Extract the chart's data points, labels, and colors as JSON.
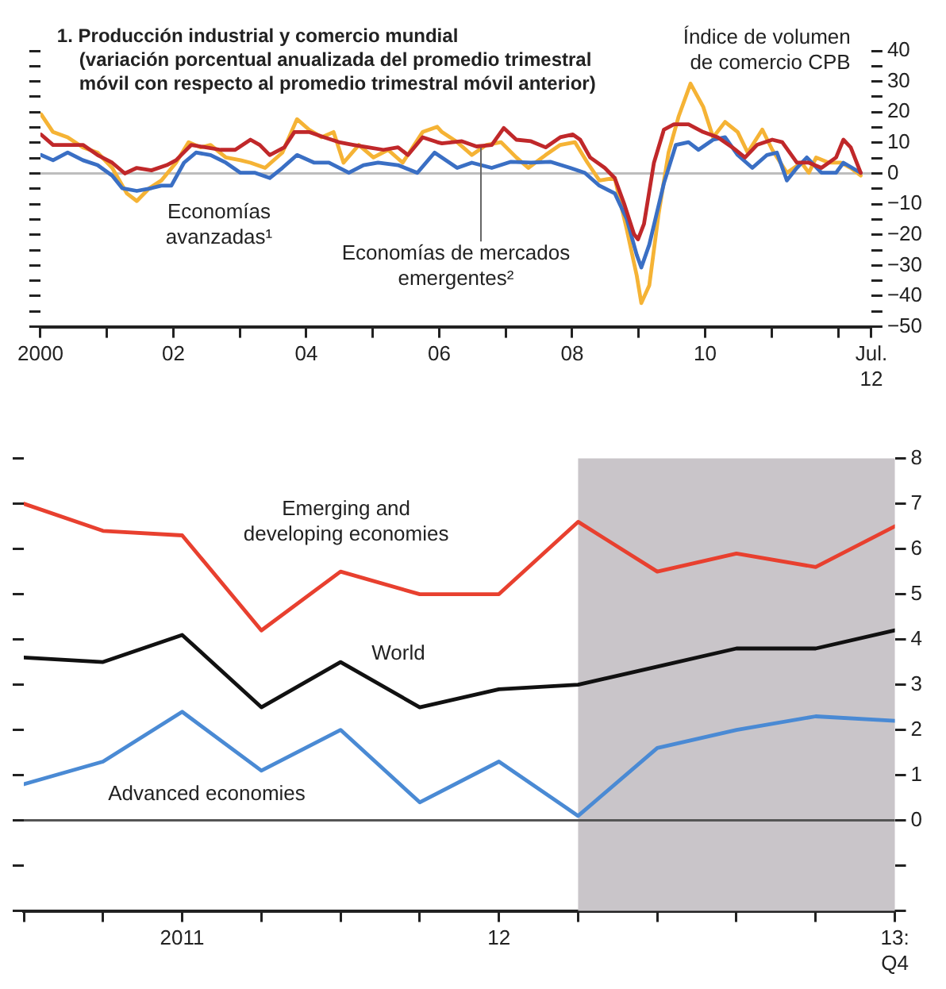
{
  "chart_data": [
    {
      "type": "line",
      "title": "1. Producción industrial y comercio mundial\n(variación porcentual anualizada del promedio trimestral\nmóvil con respecto al promedio trimestral móvil anterior)",
      "series": [
        {
          "name": "Economías de mercados\nemergentes²",
          "color": "#c0282a",
          "x": [
            2000.01,
            2000.19,
            2000.41,
            2000.64,
            2000.86,
            2001.08,
            2001.27,
            2001.45,
            2001.67,
            2001.9,
            2002.04,
            2002.27,
            2002.49,
            2002.71,
            2002.93,
            2003.16,
            2003.3,
            2003.45,
            2003.67,
            2003.82,
            2004.04,
            2004.27,
            2004.49,
            2004.71,
            2004.93,
            2005.16,
            2005.38,
            2005.53,
            2005.75,
            2005.97,
            2006.04,
            2006.34,
            2006.56,
            2006.79,
            2006.97,
            2007.16,
            2007.38,
            2007.6,
            2007.82,
            2008.01,
            2008.12,
            2008.27,
            2008.49,
            2008.64,
            2008.78,
            2008.93,
            2008.99,
            2009.08,
            2009.23,
            2009.38,
            2009.53,
            2009.75,
            2009.97,
            2010.19,
            2010.41,
            2010.6,
            2010.78,
            2011.01,
            2011.16,
            2011.38,
            2011.56,
            2011.75,
            2011.97,
            2012.08,
            2012.19,
            2012.34
          ],
          "values": [
            12.7,
            9.3,
            9.3,
            9.3,
            6,
            3.5,
            0,
            1.8,
            1,
            2.7,
            4.3,
            9.3,
            8.5,
            7.7,
            7.7,
            11,
            9.3,
            6,
            8.5,
            13.5,
            13.5,
            11.8,
            10.2,
            9.3,
            8.5,
            7.7,
            8.5,
            6,
            11.8,
            10.2,
            9.8,
            10.5,
            8.8,
            9.3,
            14.8,
            11,
            10.5,
            8.5,
            11.8,
            12.7,
            11,
            5.2,
            1.8,
            -1.5,
            -9.8,
            -19.8,
            -21.5,
            -16.5,
            3.5,
            14.3,
            16,
            16,
            13.5,
            11.8,
            8.5,
            5.2,
            9.3,
            11,
            10.2,
            3.5,
            3.5,
            1.8,
            5.2,
            11,
            8.5,
            0.2
          ]
        },
        {
          "name": "Economías\navanzadas¹",
          "color": "#3a6fc4",
          "x": [
            2000.01,
            2000.19,
            2000.41,
            2000.64,
            2000.86,
            2001.08,
            2001.23,
            2001.45,
            2001.67,
            2001.82,
            2001.97,
            2002.16,
            2002.34,
            2002.56,
            2002.79,
            2003.01,
            2003.23,
            2003.45,
            2003.64,
            2003.86,
            2004.12,
            2004.34,
            2004.64,
            2004.86,
            2005.08,
            2005.38,
            2005.67,
            2005.93,
            2006.04,
            2006.27,
            2006.49,
            2006.79,
            2007.08,
            2007.38,
            2007.67,
            2007.97,
            2008.19,
            2008.41,
            2008.64,
            2008.82,
            2008.97,
            2009.04,
            2009.16,
            2009.38,
            2009.56,
            2009.75,
            2009.9,
            2010.12,
            2010.3,
            2010.49,
            2010.71,
            2010.93,
            2011.08,
            2011.23,
            2011.38,
            2011.53,
            2011.75,
            2011.97,
            2012.08,
            2012.34
          ],
          "values": [
            6,
            4.3,
            6.8,
            4.3,
            2.7,
            -0.7,
            -4.8,
            -5.7,
            -4.8,
            -4,
            -4,
            3.5,
            6.8,
            6,
            3.5,
            0.2,
            0.2,
            -1.5,
            1.8,
            6,
            3.5,
            3.5,
            0.2,
            2.7,
            3.5,
            2.7,
            0.2,
            6.8,
            5.2,
            1.8,
            3.5,
            1.8,
            3.8,
            3.5,
            3.8,
            1.8,
            0.2,
            -4,
            -6.5,
            -14.8,
            -26.5,
            -30.7,
            -23.2,
            -3.2,
            9.3,
            10.2,
            7.7,
            11,
            11.8,
            6,
            1.8,
            6,
            6.8,
            -2.3,
            1.8,
            5.2,
            0.2,
            0.2,
            3.5,
            0.2
          ]
        },
        {
          "name": "Índice de volumen\nde comercio CPB",
          "color": "#f5b335",
          "x": [
            2000.01,
            2000.19,
            2000.41,
            2000.64,
            2000.86,
            2001.08,
            2001.3,
            2001.45,
            2001.64,
            2001.82,
            2002.04,
            2002.23,
            2002.41,
            2002.56,
            2002.79,
            2003.01,
            2003.16,
            2003.38,
            2003.64,
            2003.86,
            2004.04,
            2004.23,
            2004.41,
            2004.56,
            2004.79,
            2005.01,
            2005.23,
            2005.45,
            2005.75,
            2005.97,
            2006.04,
            2006.27,
            2006.49,
            2006.71,
            2006.93,
            2007.16,
            2007.34,
            2007.6,
            2007.82,
            2008.04,
            2008.23,
            2008.41,
            2008.64,
            2008.82,
            2008.97,
            2009.04,
            2009.16,
            2009.3,
            2009.45,
            2009.6,
            2009.78,
            2009.97,
            2010.12,
            2010.3,
            2010.49,
            2010.64,
            2010.86,
            2011.01,
            2011.23,
            2011.45,
            2011.56,
            2011.67,
            2011.86,
            2012.04,
            2012.19,
            2012.34
          ],
          "values": [
            19.3,
            13.5,
            11.8,
            8.5,
            6.8,
            1.8,
            -6.5,
            -9,
            -4.8,
            -2.3,
            3.5,
            10.2,
            8.5,
            9.3,
            5.2,
            4.3,
            3.5,
            1.8,
            6.8,
            17.7,
            14.3,
            11.8,
            13.5,
            3.5,
            9.3,
            5.2,
            7.7,
            3.5,
            13.5,
            15.2,
            13.5,
            10.2,
            6,
            9.3,
            10.2,
            5.2,
            1.8,
            6,
            9.3,
            10.2,
            3.5,
            -2.3,
            -1.5,
            -18.2,
            -33.2,
            -42.3,
            -36.5,
            -13.2,
            6.8,
            18.5,
            29.3,
            21.8,
            11.8,
            16.8,
            13.5,
            6.8,
            14.3,
            7.7,
            0.2,
            3.5,
            0.2,
            5.2,
            3.5,
            3.5,
            1.8,
            -0.7
          ]
        }
      ],
      "xlim": [
        2000,
        2012.5
      ],
      "xticks": [
        2000,
        {
          "value": 2001,
          "label": null
        },
        {
          "value": 2002,
          "label": "02"
        },
        {
          "value": 2003,
          "label": null
        },
        {
          "value": 2004,
          "label": "04"
        },
        {
          "value": 2005,
          "label": null
        },
        {
          "value": 2006,
          "label": "06"
        },
        {
          "value": 2007,
          "label": null
        },
        {
          "value": 2008,
          "label": "08"
        },
        {
          "value": 2009,
          "label": null
        },
        {
          "value": 2010,
          "label": "10"
        },
        {
          "value": 2011,
          "label": null
        },
        {
          "value": 2012,
          "label": null
        },
        {
          "value": 2012.5,
          "label": "Jul.\n12"
        }
      ],
      "ylim": [
        -50,
        40
      ],
      "yticks": [
        40,
        {
          "value": 35,
          "label": null
        },
        30,
        {
          "value": 25,
          "label": null
        },
        20,
        {
          "value": 15,
          "label": null
        },
        10,
        {
          "value": 5,
          "label": null
        },
        0,
        {
          "value": -5,
          "label": null
        },
        -10,
        {
          "value": -15,
          "label": null
        },
        -20,
        {
          "value": -25,
          "label": null
        },
        -30,
        {
          "value": -35,
          "label": null
        },
        -40,
        {
          "value": -45,
          "label": null
        },
        -50
      ],
      "ref_lines": [
        {
          "axis": "y",
          "value": 0,
          "color": "#bdbdbd"
        }
      ],
      "marker": "none",
      "line_style": "solid",
      "legend": false,
      "grid": false
    },
    {
      "type": "line",
      "x": [
        2010.5,
        2010.75,
        2011,
        2011.25,
        2011.5,
        2011.75,
        2012,
        2012.25,
        2012.5,
        2012.75,
        2013,
        2013.25
      ],
      "series": [
        {
          "name": "Emerging and\ndeveloping economies",
          "color": "#e8402f",
          "values": [
            7.0,
            6.4,
            6.3,
            4.2,
            5.5,
            5.0,
            5.0,
            6.6,
            5.5,
            5.9,
            5.6,
            6.5
          ]
        },
        {
          "name": "World",
          "color": "#111111",
          "values": [
            3.6,
            3.5,
            4.1,
            2.5,
            3.5,
            2.5,
            2.9,
            3.0,
            3.4,
            3.8,
            3.8,
            4.2
          ]
        },
        {
          "name": "Advanced economies",
          "color": "#4a8ad4",
          "values": [
            0.8,
            1.3,
            2.4,
            1.1,
            2.0,
            0.4,
            1.3,
            0.1,
            1.6,
            2.0,
            2.3,
            2.2
          ]
        }
      ],
      "xlim": [
        2010.5,
        2013.25
      ],
      "xticks": [
        {
          "value": 2010.5,
          "label": null
        },
        {
          "value": 2010.75,
          "label": null
        },
        2011,
        {
          "value": 2011.25,
          "label": null
        },
        {
          "value": 2011.5,
          "label": null
        },
        {
          "value": 2011.75,
          "label": null
        },
        {
          "value": 2012,
          "label": "12"
        },
        {
          "value": 2012.25,
          "label": null
        },
        {
          "value": 2012.5,
          "label": null
        },
        {
          "value": 2012.75,
          "label": null
        },
        {
          "value": 2013,
          "label": null
        },
        {
          "value": 2013.25,
          "label": "13:\nQ4"
        }
      ],
      "ylim": [
        -2,
        8
      ],
      "yticks": [
        {
          "value": -2,
          "label": null
        },
        {
          "value": -1,
          "label": null
        },
        0,
        1,
        2,
        3,
        4,
        5,
        6,
        7,
        8
      ],
      "ref_lines": [
        {
          "axis": "y",
          "value": 0,
          "color": "#555555"
        }
      ],
      "bands": [
        {
          "axis": "x",
          "from": 2012.25,
          "to": 2013.25,
          "color": "#c9c5c9"
        }
      ],
      "marker": "none",
      "line_style": "solid",
      "legend": false,
      "grid": false
    }
  ]
}
